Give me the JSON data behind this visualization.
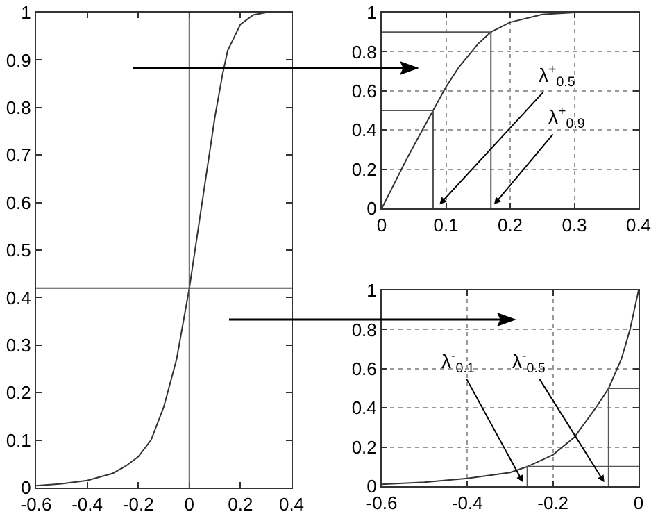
{
  "chart_data": [
    {
      "type": "line",
      "grid": false,
      "xlim": [
        -0.6,
        0.4
      ],
      "ylim": [
        0,
        1
      ],
      "xticks": [
        -0.6,
        -0.4,
        -0.2,
        0,
        0.2,
        0.4
      ],
      "yticks": [
        0,
        0.1,
        0.2,
        0.3,
        0.4,
        0.5,
        0.6,
        0.7,
        0.8,
        0.9,
        1
      ],
      "x": [
        -0.6,
        -0.5,
        -0.4,
        -0.3,
        -0.25,
        -0.2,
        -0.15,
        -0.1,
        -0.05,
        0,
        0.05,
        0.1,
        0.13,
        0.15,
        0.2,
        0.25,
        0.3,
        0.4
      ],
      "series": [
        {
          "color": "#333333",
          "values": [
            0.004,
            0.008,
            0.015,
            0.03,
            0.045,
            0.065,
            0.1,
            0.17,
            0.27,
            0.42,
            0.6,
            0.78,
            0.87,
            0.92,
            0.975,
            0.995,
            1,
            1
          ]
        }
      ],
      "ref_lines": [
        {
          "axis": "x",
          "value": 0,
          "color": "#555555"
        },
        {
          "axis": "y",
          "value": 0.42,
          "color": "#555555"
        }
      ]
    },
    {
      "type": "line",
      "grid": true,
      "xlim": [
        0,
        0.4
      ],
      "ylim": [
        0,
        1
      ],
      "xticks": [
        0,
        0.1,
        0.2,
        0.3,
        0.4
      ],
      "yticks": [
        0,
        0.2,
        0.4,
        0.6,
        0.8,
        1
      ],
      "x": [
        0,
        0.02,
        0.04,
        0.06,
        0.08,
        0.1,
        0.12,
        0.15,
        0.17,
        0.2,
        0.25,
        0.3,
        0.4
      ],
      "series": [
        {
          "color": "#333333",
          "values": [
            0,
            0.13,
            0.26,
            0.38,
            0.5,
            0.62,
            0.72,
            0.84,
            0.9,
            0.95,
            0.99,
            1,
            1
          ]
        },
        {
          "color": "#555555",
          "x": [
            0,
            0.08,
            0.08
          ],
          "values": [
            0.5,
            0.5,
            0
          ]
        },
        {
          "color": "#555555",
          "x": [
            0,
            0.17,
            0.17
          ],
          "values": [
            0.9,
            0.9,
            0
          ]
        }
      ],
      "annotations": [
        {
          "text": "λ$^{+}$$_{0.5}$",
          "x": 0.09,
          "y": 0.02
        },
        {
          "text": "λ$^{+}$$_{0.9}$",
          "x": 0.175,
          "y": 0.02
        }
      ]
    },
    {
      "type": "line",
      "grid": true,
      "xlim": [
        -0.6,
        0
      ],
      "ylim": [
        0,
        1
      ],
      "xticks": [
        -0.6,
        -0.4,
        -0.2,
        0
      ],
      "yticks": [
        0,
        0.2,
        0.4,
        0.6,
        0.8,
        1
      ],
      "x": [
        -0.6,
        -0.5,
        -0.4,
        -0.3,
        -0.26,
        -0.2,
        -0.15,
        -0.1,
        -0.07,
        -0.04,
        -0.02,
        0
      ],
      "series": [
        {
          "color": "#333333",
          "values": [
            0.01,
            0.02,
            0.04,
            0.07,
            0.1,
            0.16,
            0.25,
            0.4,
            0.5,
            0.65,
            0.8,
            1
          ]
        },
        {
          "color": "#555555",
          "x": [
            -0.26,
            -0.26,
            0
          ],
          "values": [
            0,
            0.1,
            0.1
          ]
        },
        {
          "color": "#555555",
          "x": [
            -0.07,
            -0.07,
            0
          ],
          "values": [
            0,
            0.5,
            0.5
          ]
        }
      ],
      "annotations": [
        {
          "text": "λ$^{-}$$_{0.1}$",
          "x": -0.27,
          "y": 0.02
        },
        {
          "text": "λ$^{-}$$_{0.5}$",
          "x": -0.08,
          "y": 0.02
        }
      ]
    }
  ]
}
